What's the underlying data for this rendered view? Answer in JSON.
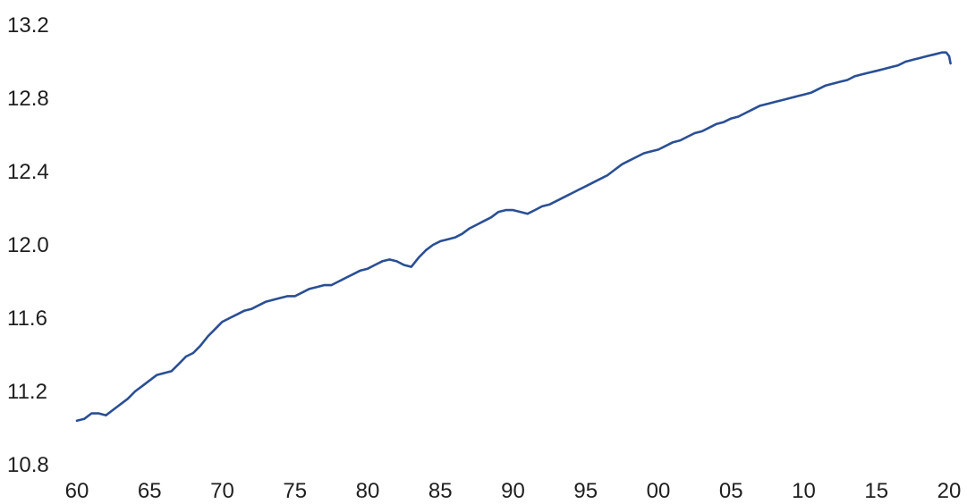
{
  "chart_data": {
    "type": "line",
    "title": "",
    "xlabel": "",
    "ylabel": "",
    "grid": false,
    "legend": "none",
    "xlim": [
      1960,
      2020
    ],
    "ylim": [
      10.8,
      13.2
    ],
    "x_ticks": [
      {
        "value": 1960,
        "label": "60"
      },
      {
        "value": 1965,
        "label": "65"
      },
      {
        "value": 1970,
        "label": "70"
      },
      {
        "value": 1975,
        "label": "75"
      },
      {
        "value": 1980,
        "label": "80"
      },
      {
        "value": 1985,
        "label": "85"
      },
      {
        "value": 1990,
        "label": "90"
      },
      {
        "value": 1995,
        "label": "95"
      },
      {
        "value": 2000,
        "label": "00"
      },
      {
        "value": 2005,
        "label": "05"
      },
      {
        "value": 2010,
        "label": "10"
      },
      {
        "value": 2015,
        "label": "15"
      },
      {
        "value": 2020,
        "label": "20"
      }
    ],
    "y_ticks": [
      {
        "value": 10.8,
        "label": "10.8"
      },
      {
        "value": 11.2,
        "label": "11.2"
      },
      {
        "value": 11.6,
        "label": "11.6"
      },
      {
        "value": 12.0,
        "label": "12.0"
      },
      {
        "value": 12.4,
        "label": "12.4"
      },
      {
        "value": 12.8,
        "label": "12.8"
      },
      {
        "value": 13.2,
        "label": "13.2"
      }
    ],
    "series": [
      {
        "color": "#2a4f94",
        "x": [
          1960.0,
          1960.5,
          1961.0,
          1961.5,
          1962.0,
          1962.5,
          1963.0,
          1963.5,
          1964.0,
          1964.5,
          1965.0,
          1965.5,
          1966.0,
          1966.5,
          1967.0,
          1967.5,
          1968.0,
          1968.5,
          1969.0,
          1969.5,
          1970.0,
          1970.5,
          1971.0,
          1971.5,
          1972.0,
          1972.5,
          1973.0,
          1973.5,
          1974.0,
          1974.5,
          1975.0,
          1975.5,
          1976.0,
          1976.5,
          1977.0,
          1977.5,
          1978.0,
          1978.5,
          1979.0,
          1979.5,
          1980.0,
          1980.5,
          1981.0,
          1981.5,
          1982.0,
          1982.5,
          1983.0,
          1983.5,
          1984.0,
          1984.5,
          1985.0,
          1985.5,
          1986.0,
          1986.5,
          1987.0,
          1987.5,
          1988.0,
          1988.5,
          1989.0,
          1989.5,
          1990.0,
          1990.5,
          1991.0,
          1991.5,
          1992.0,
          1992.5,
          1993.0,
          1993.5,
          1994.0,
          1994.5,
          1995.0,
          1995.5,
          1996.0,
          1996.5,
          1997.0,
          1997.5,
          1998.0,
          1998.5,
          1999.0,
          1999.5,
          2000.0,
          2000.5,
          2001.0,
          2001.5,
          2002.0,
          2002.5,
          2003.0,
          2003.5,
          2004.0,
          2004.5,
          2005.0,
          2005.5,
          2006.0,
          2006.5,
          2007.0,
          2007.5,
          2008.0,
          2008.5,
          2009.0,
          2009.5,
          2010.0,
          2010.5,
          2011.0,
          2011.5,
          2012.0,
          2012.5,
          2013.0,
          2013.5,
          2014.0,
          2014.5,
          2015.0,
          2015.5,
          2016.0,
          2016.5,
          2017.0,
          2017.5,
          2018.0,
          2018.5,
          2019.0,
          2019.5,
          2019.8,
          2020.0,
          2020.1
        ],
        "y": [
          11.04,
          11.05,
          11.08,
          11.08,
          11.07,
          11.1,
          11.13,
          11.16,
          11.2,
          11.23,
          11.26,
          11.29,
          11.3,
          11.31,
          11.35,
          11.39,
          11.41,
          11.45,
          11.5,
          11.54,
          11.58,
          11.6,
          11.62,
          11.64,
          11.65,
          11.67,
          11.69,
          11.7,
          11.71,
          11.72,
          11.72,
          11.74,
          11.76,
          11.77,
          11.78,
          11.78,
          11.8,
          11.82,
          11.84,
          11.86,
          11.87,
          11.89,
          11.91,
          11.92,
          11.91,
          11.89,
          11.88,
          11.93,
          11.97,
          12.0,
          12.02,
          12.03,
          12.04,
          12.06,
          12.09,
          12.11,
          12.13,
          12.15,
          12.18,
          12.19,
          12.19,
          12.18,
          12.17,
          12.19,
          12.21,
          12.22,
          12.24,
          12.26,
          12.28,
          12.3,
          12.32,
          12.34,
          12.36,
          12.38,
          12.41,
          12.44,
          12.46,
          12.48,
          12.5,
          12.51,
          12.52,
          12.54,
          12.56,
          12.57,
          12.59,
          12.61,
          12.62,
          12.64,
          12.66,
          12.67,
          12.69,
          12.7,
          12.72,
          12.74,
          12.76,
          12.77,
          12.78,
          12.79,
          12.8,
          12.81,
          12.82,
          12.83,
          12.85,
          12.87,
          12.88,
          12.89,
          12.9,
          12.92,
          12.93,
          12.94,
          12.95,
          12.96,
          12.97,
          12.98,
          13.0,
          13.01,
          13.02,
          13.03,
          13.04,
          13.05,
          13.05,
          13.03,
          12.99
        ]
      }
    ]
  }
}
